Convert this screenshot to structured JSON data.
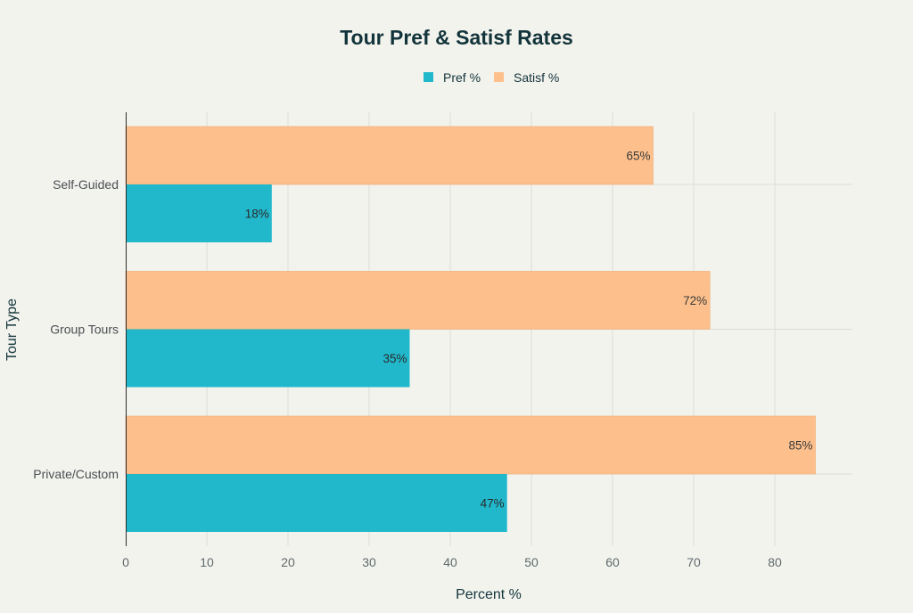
{
  "chart_data": {
    "type": "bar",
    "orientation": "horizontal",
    "title": "Tour Pref & Satisf Rates",
    "xlabel": "Percent %",
    "ylabel": "Tour Type",
    "categories": [
      "Self-Guided",
      "Group Tours",
      "Private/Custom"
    ],
    "series": [
      {
        "name": "Pref %",
        "values": [
          18,
          35,
          47
        ],
        "color": "#21b8cc"
      },
      {
        "name": "Satisf %",
        "values": [
          65,
          72,
          85
        ],
        "color": "#fdc08c"
      }
    ],
    "data_labels": {
      "Pref %": [
        "18%",
        "35%",
        "47%"
      ],
      "Satisf %": [
        "65%",
        "72%",
        "85%"
      ]
    },
    "xlim": [
      0,
      90
    ],
    "x_ticks": [
      0,
      10,
      20,
      30,
      40,
      50,
      60,
      70,
      80
    ],
    "grid": true,
    "legend_position": "top-center"
  }
}
